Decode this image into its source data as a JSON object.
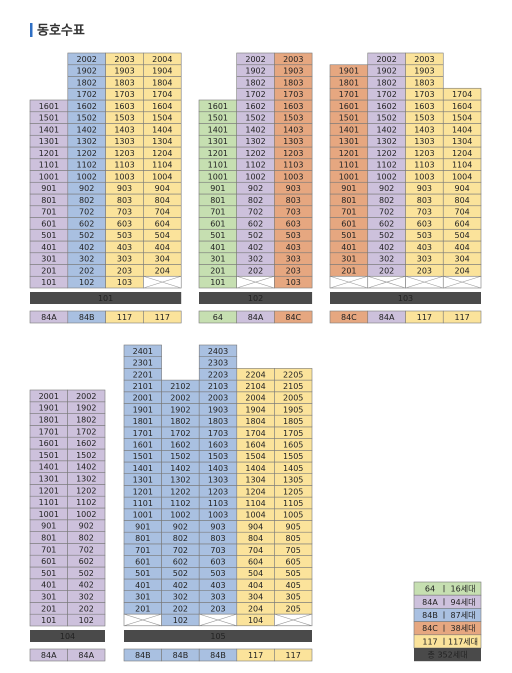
{
  "header": {
    "title": "동호수표"
  },
  "buildings": [
    {
      "name": "101",
      "types": [
        "84A",
        "84B",
        "117",
        "117"
      ],
      "columns": [
        [
          "101",
          "201",
          "301",
          "401",
          "501",
          "601",
          "701",
          "801",
          "901",
          "1001",
          "1101",
          "1201",
          "1301",
          "1401",
          "1501",
          "1601"
        ],
        [
          "102",
          "202",
          "302",
          "402",
          "502",
          "602",
          "702",
          "802",
          "902",
          "1002",
          "1102",
          "1202",
          "1302",
          "1402",
          "1502",
          "1602",
          "1702",
          "1802",
          "1902",
          "2002"
        ],
        [
          "103",
          "203",
          "303",
          "403",
          "503",
          "603",
          "703",
          "803",
          "903",
          "1003",
          "1103",
          "1203",
          "1303",
          "1403",
          "1503",
          "1603",
          "1703",
          "1803",
          "1903",
          "2003"
        ],
        [
          null,
          "204",
          "304",
          "404",
          "504",
          "604",
          "704",
          "804",
          "904",
          "1004",
          "1104",
          "1204",
          "1304",
          "1404",
          "1504",
          "1604",
          "1704",
          "1804",
          "1904",
          "2004"
        ]
      ]
    },
    {
      "name": "102",
      "types": [
        "64",
        "84A",
        "84C"
      ],
      "columns": [
        [
          "101",
          "201",
          "301",
          "401",
          "501",
          "601",
          "701",
          "801",
          "901",
          "1001",
          "1101",
          "1201",
          "1301",
          "1401",
          "1501",
          "1601"
        ],
        [
          null,
          "202",
          "302",
          "402",
          "502",
          "602",
          "702",
          "802",
          "902",
          "1002",
          "1102",
          "1202",
          "1302",
          "1402",
          "1502",
          "1602",
          "1702",
          "1802",
          "1902",
          "2002"
        ],
        [
          "103",
          "203",
          "303",
          "403",
          "503",
          "603",
          "703",
          "803",
          "903",
          "1003",
          "1103",
          "1203",
          "1303",
          "1403",
          "1503",
          "1603",
          "1703",
          "1803",
          "1903",
          "2003"
        ]
      ]
    },
    {
      "name": "103",
      "types": [
        "84C",
        "84A",
        "117",
        "117"
      ],
      "columns": [
        [
          null,
          "201",
          "301",
          "401",
          "501",
          "601",
          "701",
          "801",
          "901",
          "1001",
          "1101",
          "1201",
          "1301",
          "1401",
          "1501",
          "1601",
          "1701",
          "1801",
          "1901"
        ],
        [
          null,
          "202",
          "302",
          "402",
          "502",
          "602",
          "702",
          "802",
          "902",
          "1002",
          "1102",
          "1202",
          "1302",
          "1402",
          "1502",
          "1602",
          "1702",
          "1802",
          "1902",
          "2002"
        ],
        [
          null,
          "203",
          "303",
          "403",
          "503",
          "603",
          "703",
          "803",
          "903",
          "1003",
          "1103",
          "1203",
          "1303",
          "1403",
          "1503",
          "1603",
          "1703",
          "1803",
          "1903",
          "2003"
        ],
        [
          null,
          "204",
          "304",
          "404",
          "504",
          "604",
          "704",
          "804",
          "904",
          "1004",
          "1104",
          "1204",
          "1304",
          "1404",
          "1504",
          "1604",
          "1704"
        ]
      ]
    },
    {
      "name": "104",
      "types": [
        "84A",
        "84A"
      ],
      "columns": [
        [
          "101",
          "201",
          "301",
          "401",
          "501",
          "601",
          "701",
          "801",
          "901",
          "1001",
          "1101",
          "1201",
          "1301",
          "1401",
          "1501",
          "1601",
          "1701",
          "1801",
          "1901",
          "2001"
        ],
        [
          "102",
          "202",
          "302",
          "402",
          "502",
          "602",
          "702",
          "802",
          "902",
          "1002",
          "1102",
          "1202",
          "1302",
          "1402",
          "1502",
          "1602",
          "1702",
          "1802",
          "1902",
          "2002"
        ]
      ]
    },
    {
      "name": "105",
      "types": [
        "84B",
        "84B",
        "84B",
        "117",
        "117"
      ],
      "columns": [
        [
          null,
          "201",
          "301",
          "401",
          "501",
          "601",
          "701",
          "801",
          "901",
          "1001",
          "1101",
          "1201",
          "1301",
          "1401",
          "1501",
          "1601",
          "1701",
          "1801",
          "1901",
          "2001",
          "2101",
          "2201",
          "2301",
          "2401"
        ],
        [
          "102",
          "202",
          "302",
          "402",
          "502",
          "602",
          "702",
          "802",
          "902",
          "1002",
          "1102",
          "1202",
          "1302",
          "1402",
          "1502",
          "1602",
          "1702",
          "1802",
          "1902",
          "2002",
          "2102"
        ],
        [
          null,
          "203",
          "303",
          "403",
          "503",
          "603",
          "703",
          "803",
          "903",
          "1003",
          "1103",
          "1203",
          "1303",
          "1403",
          "1503",
          "1603",
          "1703",
          "1803",
          "1903",
          "2003",
          "2103",
          "2203",
          "2303",
          "2403"
        ],
        [
          "104",
          "204",
          "304",
          "404",
          "504",
          "604",
          "704",
          "804",
          "904",
          "1004",
          "1104",
          "1204",
          "1304",
          "1404",
          "1504",
          "1604",
          "1704",
          "1804",
          "1904",
          "2004",
          "2104",
          "2204"
        ],
        [
          null,
          "205",
          "305",
          "405",
          "505",
          "605",
          "705",
          "805",
          "905",
          "1005",
          "1105",
          "1205",
          "1305",
          "1405",
          "1505",
          "1605",
          "1705",
          "1805",
          "1905",
          "2005",
          "2105",
          "2205"
        ]
      ]
    }
  ],
  "legend": {
    "items": [
      {
        "type": "64",
        "count": "16세대",
        "color": "#c6dfb1"
      },
      {
        "type": "84A",
        "count": "94세대",
        "color": "#cdc1dc"
      },
      {
        "type": "84B",
        "count": "87세대",
        "color": "#a9c0e1"
      },
      {
        "type": "84C",
        "count": "38세대",
        "color": "#e6a780"
      },
      {
        "type": "117",
        "count": "117세대",
        "color": "#fbe39b"
      }
    ],
    "total": "총 352세대"
  }
}
